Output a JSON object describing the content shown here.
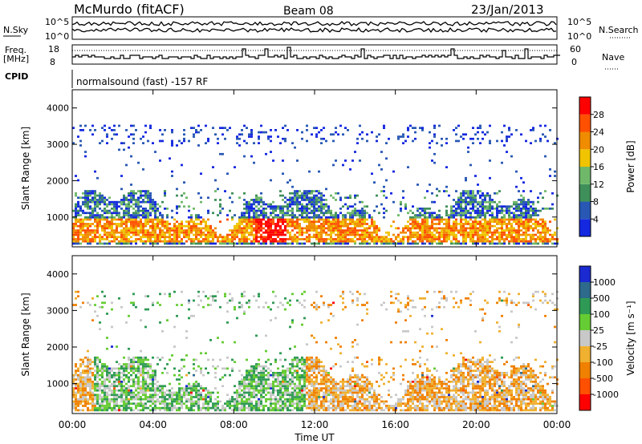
{
  "header": {
    "station": "McMurdo (fitACF)",
    "beam": "Beam 08",
    "date": "23/Jan/2013"
  },
  "panels": {
    "nsky": {
      "label": "N.Sky",
      "tick_top": "10^5",
      "tick_bottom": "10^0"
    },
    "nsearch": {
      "label": "N.Search",
      "tick_top": "10^5",
      "tick_bottom": "10^0"
    },
    "freq": {
      "label_line1": "Freq.",
      "label_line2": "[MHz]",
      "tick_top": "18",
      "tick_bottom": "8"
    },
    "nave": {
      "label": "Nave",
      "tick_top": "60",
      "tick_bottom": "0"
    },
    "cpid": {
      "label": "CPID",
      "value": "normalsound (fast) -157 RF"
    }
  },
  "chart_data": [
    {
      "type": "heatmap",
      "name": "power-panel",
      "ylabel": "Slant Range [km]",
      "xlabel": "Time UT",
      "ylim": [
        180,
        4500
      ],
      "xlim": [
        0,
        24
      ],
      "yticks": [
        "1000",
        "2000",
        "3000",
        "4000"
      ],
      "ytick_values": [
        1000,
        2000,
        3000,
        4000
      ],
      "colorbar": {
        "label": "Power [dB]",
        "tick_labels": [
          "4",
          "8",
          "12",
          "16",
          "20",
          "24",
          "28"
        ],
        "bin_colors": [
          "#1428e0",
          "#2858b4",
          "#3f8f5a",
          "#6fb86a",
          "#f0c400",
          "#f08c00",
          "#ff5000",
          "#ff0000"
        ]
      },
      "pattern": {
        "dense_band_km": [
          200,
          1700
        ],
        "strongest_band_km": [
          300,
          900
        ],
        "strong_echo_hours": [
          9.0,
          10.5
        ],
        "high_range_scatter_km": [
          3000,
          3500
        ]
      }
    },
    {
      "type": "heatmap",
      "name": "velocity-panel",
      "ylabel": "Slant Range [km]",
      "xlabel": "Time UT",
      "ylim": [
        180,
        4500
      ],
      "xlim": [
        0,
        24
      ],
      "yticks": [
        "1000",
        "2000",
        "3000",
        "4000"
      ],
      "ytick_values": [
        1000,
        2000,
        3000,
        4000
      ],
      "colorbar": {
        "label": "Velocity [m s⁻¹]",
        "tick_labels": [
          "1000",
          "500",
          "100",
          "25",
          "-25",
          "-100",
          "-500",
          "-1000"
        ],
        "bin_colors": [
          "#1a2ad0",
          "#2e6a8c",
          "#2f9a55",
          "#66cc33",
          "#c8c8c8",
          "#f0b030",
          "#f08000",
          "#ff5000",
          "#ff0000"
        ]
      },
      "pattern": {
        "positive_hours": [
          1.0,
          11.5
        ],
        "negative_hours": [
          11.5,
          24.0
        ]
      }
    }
  ],
  "time_axis": {
    "label": "Time UT",
    "ticks": [
      "00:00",
      "04:00",
      "08:00",
      "12:00",
      "16:00",
      "20:00",
      "00:00"
    ],
    "tick_hours": [
      0,
      4,
      8,
      12,
      16,
      20,
      24
    ]
  }
}
